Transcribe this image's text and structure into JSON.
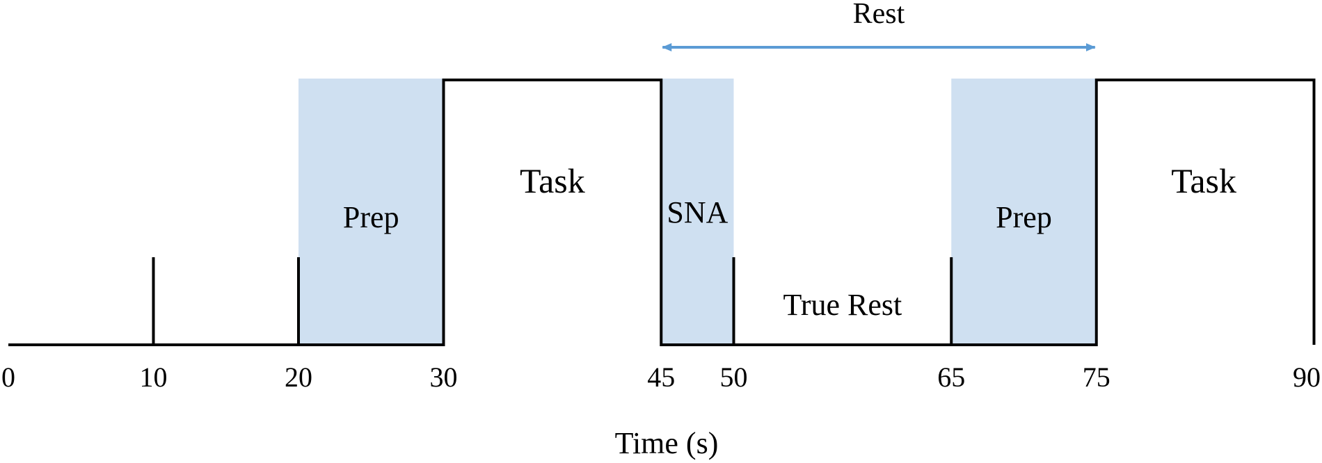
{
  "diagram": {
    "xlabel": "Time (s)",
    "ticks": [
      "0",
      "10",
      "20",
      "30",
      "45",
      "50",
      "65",
      "75",
      "90"
    ],
    "labels": {
      "rest": "Rest",
      "task_1": "Task",
      "prep_1": "Prep",
      "sna": "SNA",
      "true_rest": "True Rest",
      "prep_2": "Prep",
      "task_2": "Task"
    },
    "colors": {
      "shade": "#cfe0f1",
      "arrow": "#5b9bd5",
      "line": "#000000"
    }
  },
  "chart_data": {
    "type": "timeline",
    "xlabel": "Time (s)",
    "xlim": [
      0,
      90
    ],
    "tick_values": [
      0,
      10,
      20,
      30,
      45,
      50,
      65,
      75,
      90
    ],
    "events": [
      10,
      20,
      50,
      65
    ],
    "segments": [
      {
        "label": "",
        "start": 0,
        "end": 20,
        "level": "low",
        "shaded": false
      },
      {
        "label": "Prep",
        "start": 20,
        "end": 30,
        "level": "low",
        "shaded": true
      },
      {
        "label": "Task",
        "start": 30,
        "end": 45,
        "level": "high",
        "shaded": false
      },
      {
        "label": "SNA",
        "start": 45,
        "end": 50,
        "level": "low",
        "shaded": true
      },
      {
        "label": "True Rest",
        "start": 50,
        "end": 65,
        "level": "low",
        "shaded": false
      },
      {
        "label": "Prep",
        "start": 65,
        "end": 75,
        "level": "low",
        "shaded": true
      },
      {
        "label": "Task",
        "start": 75,
        "end": 90,
        "level": "high",
        "shaded": false
      }
    ],
    "span_arrow": {
      "label": "Rest",
      "start": 45,
      "end": 75
    }
  }
}
